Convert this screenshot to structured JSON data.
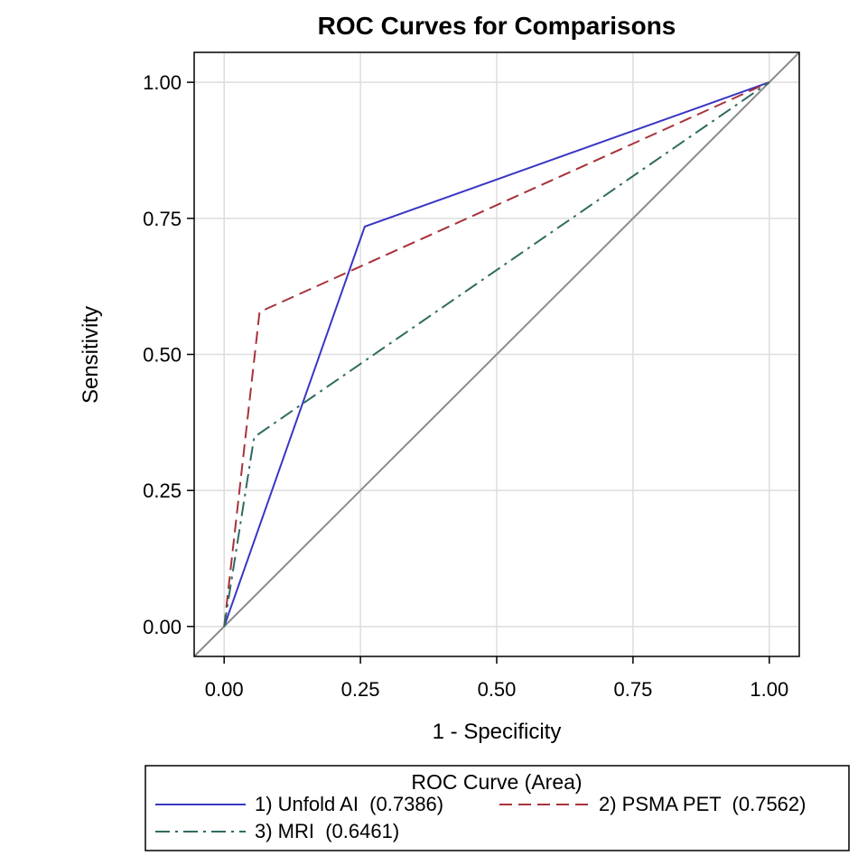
{
  "chart_data": {
    "type": "line",
    "title": "ROC Curves for Comparisons",
    "xlabel": "1 - Specificity",
    "ylabel": "Sensitivity",
    "xlim": [
      -0.055,
      1.055
    ],
    "ylim": [
      -0.055,
      1.055
    ],
    "x_ticks": [
      "0.00",
      "0.25",
      "0.50",
      "0.75",
      "1.00"
    ],
    "y_ticks": [
      "0.00",
      "0.25",
      "0.50",
      "0.75",
      "1.00"
    ],
    "grid": true,
    "legend_placement": "bottom",
    "reference_line": {
      "x": [
        -0.055,
        1.055
      ],
      "y": [
        -0.055,
        1.055
      ],
      "color": "#8c8c8c"
    },
    "series": [
      {
        "name": "1) Unfold AI  (0.7386)",
        "color": "#3a36c4",
        "dash": "solid",
        "x": [
          0.0,
          0.258,
          1.0
        ],
        "y": [
          0.0,
          0.735,
          1.0
        ]
      },
      {
        "name": "2) PSMA PET  (0.7562)",
        "color": "#a8333a",
        "dash": "dashed",
        "x": [
          0.0,
          0.065,
          1.0
        ],
        "y": [
          0.0,
          0.578,
          1.0
        ]
      },
      {
        "name": "3) MRI  (0.6461)",
        "color": "#2f6b60",
        "dash": "dashdot",
        "x": [
          0.0,
          0.055,
          1.0
        ],
        "y": [
          0.0,
          0.348,
          1.0
        ]
      }
    ]
  },
  "legend": {
    "title": "ROC Curve (Area)"
  }
}
